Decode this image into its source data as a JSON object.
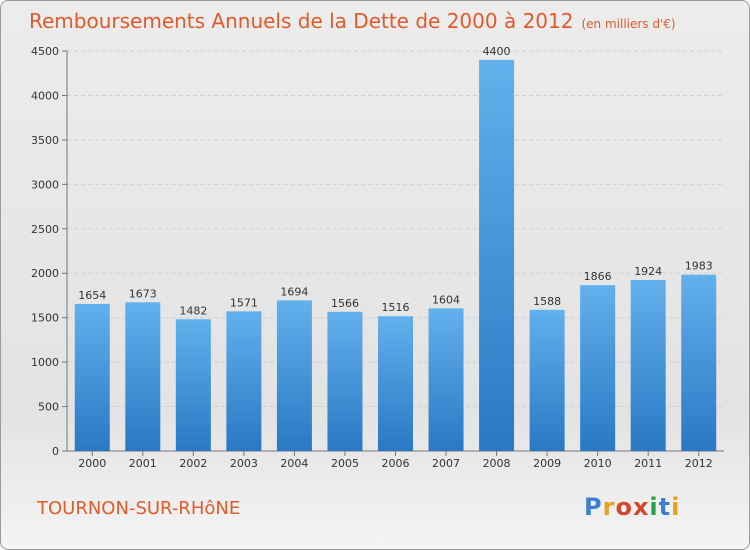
{
  "chart_data": {
    "type": "bar",
    "title": "Remboursements Annuels de la Dette de 2000 à 2012",
    "subtitle": "(en milliers d'€)",
    "categories": [
      "2000",
      "2001",
      "2002",
      "2003",
      "2004",
      "2005",
      "2006",
      "2007",
      "2008",
      "2009",
      "2010",
      "2011",
      "2012"
    ],
    "values": [
      1654,
      1673,
      1482,
      1571,
      1694,
      1566,
      1516,
      1604,
      4400,
      1588,
      1866,
      1924,
      1983
    ],
    "yticks": [
      0,
      500,
      1000,
      1500,
      2000,
      2500,
      3000,
      3500,
      4000,
      4500
    ],
    "ylim": [
      0,
      4500
    ],
    "xlabel": "",
    "ylabel": "",
    "grid": true,
    "bar_color": "#3a8fd6"
  },
  "commune": "TOURNON-SUR-RHôNE",
  "logo": {
    "letters": [
      "P",
      "r",
      "o",
      "x",
      "i",
      "t",
      "i"
    ],
    "colors": [
      "#3a7fd0",
      "#e8a020",
      "#d04a2a",
      "#d04a2a",
      "#2aa04a",
      "#3a7fd0",
      "#e8a020"
    ]
  }
}
